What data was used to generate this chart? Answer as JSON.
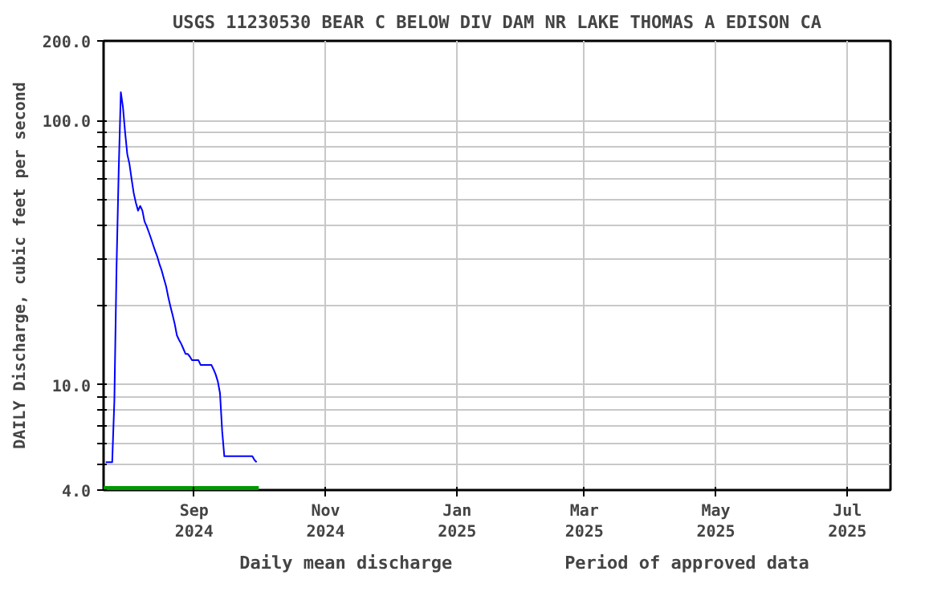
{
  "chart_data": {
    "type": "line",
    "title": "USGS 11230530 BEAR C BELOW DIV DAM NR LAKE THOMAS A EDISON CA",
    "ylabel": "DAILY Discharge, cubic feet per second",
    "log": "y",
    "grid": true,
    "legend": "bottom",
    "line_style": "solid",
    "marker": "none",
    "xlim": [
      "2024-07-21",
      "2025-07-21"
    ],
    "xticks": [
      {
        "value": "2024-09-01",
        "label": "Sep\n2024"
      },
      {
        "value": "2024-11-01",
        "label": "Nov\n2024"
      },
      {
        "value": "2025-01-01",
        "label": "Jan\n2025"
      },
      {
        "value": "2025-03-01",
        "label": "Mar\n2025"
      },
      {
        "value": "2025-05-01",
        "label": "May\n2025"
      },
      {
        "value": "2025-07-01",
        "label": "Jul\n2025"
      }
    ],
    "ylim": [
      4,
      200
    ],
    "yticks": [
      {
        "value": 4,
        "label": "4.0"
      },
      {
        "value": 5,
        "label": null
      },
      {
        "value": 6,
        "label": null
      },
      {
        "value": 7,
        "label": null
      },
      {
        "value": 8,
        "label": null
      },
      {
        "value": 9,
        "label": null
      },
      {
        "value": 10,
        "label": "10.0"
      },
      {
        "value": 20,
        "label": null
      },
      {
        "value": 30,
        "label": null
      },
      {
        "value": 40,
        "label": null
      },
      {
        "value": 50,
        "label": null
      },
      {
        "value": 60,
        "label": null
      },
      {
        "value": 70,
        "label": null
      },
      {
        "value": 80,
        "label": null
      },
      {
        "value": 90,
        "label": null
      },
      {
        "value": 100,
        "label": "100.0"
      },
      {
        "value": 200,
        "label": "200.0"
      }
    ],
    "series": [
      {
        "name": "Daily mean discharge",
        "color": "#0000ff",
        "x": [
          "2024-07-22",
          "2024-07-25",
          "2024-07-26",
          "2024-07-27",
          "2024-07-28",
          "2024-07-29",
          "2024-07-30",
          "2024-07-31",
          "2024-08-01",
          "2024-08-02",
          "2024-08-03",
          "2024-08-04",
          "2024-08-05",
          "2024-08-06",
          "2024-08-07",
          "2024-08-08",
          "2024-08-09",
          "2024-08-10",
          "2024-08-11",
          "2024-08-12",
          "2024-08-13",
          "2024-08-14",
          "2024-08-15",
          "2024-08-16",
          "2024-08-17",
          "2024-08-18",
          "2024-08-19",
          "2024-08-20",
          "2024-08-21",
          "2024-08-22",
          "2024-08-23",
          "2024-08-24",
          "2024-08-25",
          "2024-08-26",
          "2024-08-27",
          "2024-08-28",
          "2024-08-29",
          "2024-08-30",
          "2024-08-31",
          "2024-09-03",
          "2024-09-04",
          "2024-09-09",
          "2024-09-10",
          "2024-09-11",
          "2024-09-12",
          "2024-09-13",
          "2024-09-14",
          "2024-09-15",
          "2024-09-28",
          "2024-09-29",
          "2024-09-30"
        ],
        "values": [
          5.1,
          5.1,
          8.7,
          27.6,
          64,
          128,
          112,
          90,
          74.5,
          68.5,
          60,
          53,
          48.8,
          45.6,
          47.5,
          45.6,
          41.5,
          39.8,
          37.8,
          35.8,
          33.8,
          32,
          30.4,
          28.5,
          27,
          25.2,
          23.6,
          21.5,
          19.8,
          18.4,
          17.0,
          15.4,
          14.8,
          14.3,
          13.7,
          13.1,
          13.1,
          12.8,
          12.4,
          12.4,
          11.9,
          11.9,
          11.45,
          10.95,
          10.3,
          9.3,
          6.7,
          5.37,
          5.37,
          5.2,
          5.1
        ]
      },
      {
        "name": "Period of approved data",
        "type": "line",
        "color": "#009900",
        "x": [
          "2024-07-21",
          "2024-10-01"
        ],
        "values": [
          4,
          4
        ]
      }
    ]
  }
}
